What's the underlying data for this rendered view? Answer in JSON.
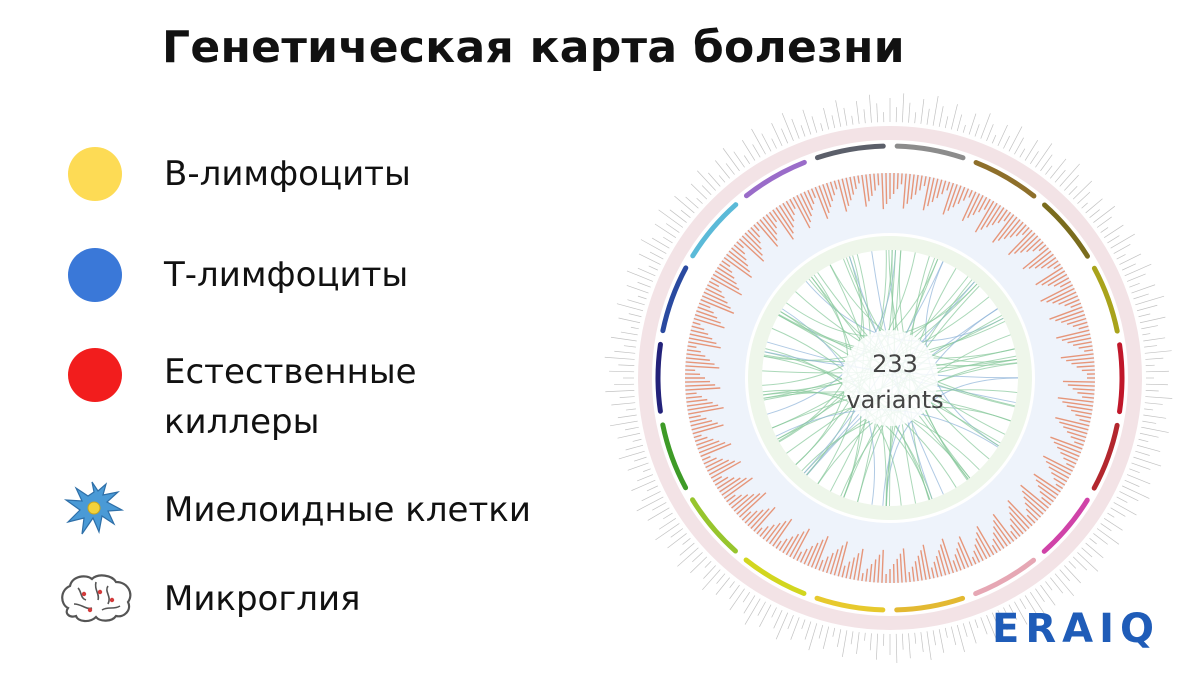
{
  "title": "Генетическая карта болезни",
  "legend": [
    {
      "label": "В-лимфоциты",
      "color": "#fddb55",
      "icon": "yellow-dot"
    },
    {
      "label": "Т-лимфоциты",
      "color": "#3a78d8",
      "icon": "blue-dot"
    },
    {
      "label": "Естественные киллеры",
      "color": "#f21d1d",
      "icon": "red-dot"
    },
    {
      "label": "Миелоидные клетки",
      "color": "#3d8fd0",
      "icon": "myeloid-cell-icon"
    },
    {
      "label": "Микроглия",
      "color": "#d23b3b",
      "icon": "brain-icon"
    }
  ],
  "circos": {
    "center_number": "233",
    "center_label": "variants",
    "chord_color": "#86c79a",
    "chord_color_alt": "#8fb4d8",
    "bar_color": "#e4774f",
    "segment_colors": [
      "#8e6f2a",
      "#7a6c1d",
      "#a9a31b",
      "#c0172a",
      "#b3272e",
      "#d043a8",
      "#e6a7b4",
      "#e3b932",
      "#e7c92d",
      "#d2d61f",
      "#97c52d",
      "#3e9b27",
      "#23227a",
      "#2a4aa0",
      "#5bbad8",
      "#9a6cc9",
      "#5b5f6a",
      "#8c8c8c"
    ]
  },
  "logo": "ERAIQ"
}
